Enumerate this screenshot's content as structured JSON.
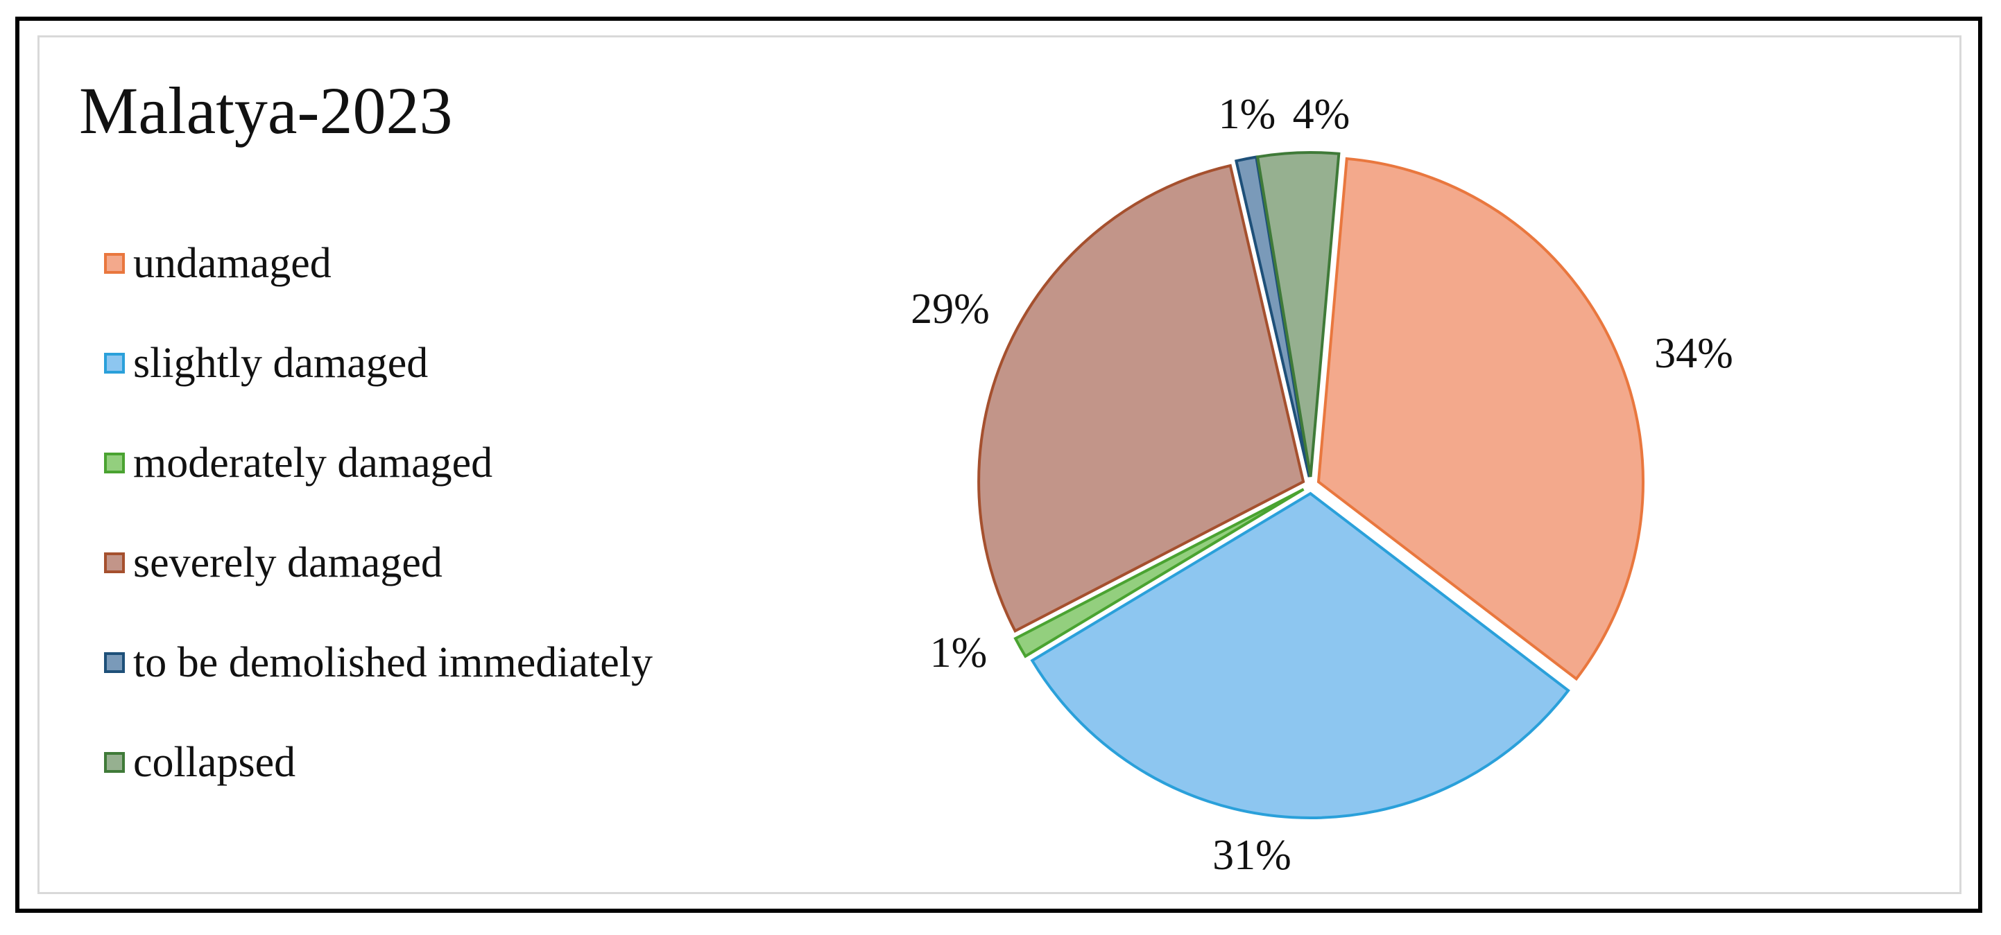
{
  "chart_data": {
    "type": "pie",
    "title": "Malatya-2023",
    "legend_position": "left",
    "slices": [
      {
        "name": "undamaged",
        "value": 34,
        "label": "34%",
        "fill": "#f3a98c",
        "stroke": "#e9773e"
      },
      {
        "name": "slightly damaged",
        "value": 31,
        "label": "31%",
        "fill": "#8dc6f0",
        "stroke": "#2aa0da"
      },
      {
        "name": "moderately damaged",
        "value": 1,
        "label": "1%",
        "fill": "#93cf7e",
        "stroke": "#4aa331"
      },
      {
        "name": "severely damaged",
        "value": 29,
        "label": "29%",
        "fill": "#c29589",
        "stroke": "#a5502e"
      },
      {
        "name": "to be demolished immediately",
        "value": 1,
        "label": "1%",
        "fill": "#7a9ab9",
        "stroke": "#1e5079"
      },
      {
        "name": "collapsed",
        "value": 4,
        "label": "4%",
        "fill": "#96b090",
        "stroke": "#3f7a38"
      }
    ]
  }
}
